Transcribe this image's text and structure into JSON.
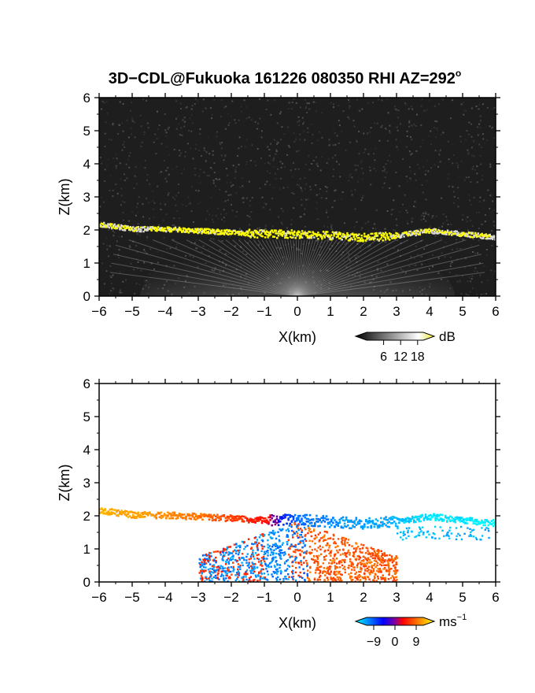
{
  "figure": {
    "title_main": "3D−CDL@Fukuoka 161226 080350 RHI AZ=292",
    "title_sup": "o"
  },
  "chart_data": [
    {
      "type": "heatmap",
      "panel": "top",
      "quantity": "reflectivity",
      "xlabel": "X(km)",
      "ylabel": "Z(km)",
      "xlim": [
        -6,
        6
      ],
      "ylim": [
        0,
        6
      ],
      "xticks": [
        "−6",
        "−5",
        "−4",
        "−3",
        "−2",
        "−1",
        "0",
        "1",
        "2",
        "3",
        "4",
        "5",
        "6"
      ],
      "yticks": [
        "0",
        "1",
        "2",
        "3",
        "4",
        "5",
        "6"
      ],
      "grid": false,
      "colorbar": {
        "unit": "dB",
        "ticks": [
          "6",
          "12",
          "18"
        ],
        "tick_values": [
          6,
          12,
          18
        ],
        "range": [
          0,
          20
        ],
        "colors": [
          "#000000",
          "#ffffff",
          "#ffff00"
        ]
      },
      "background": "#1e1e1e",
      "layers": [
        {
          "name": "aerosol layer",
          "x": [
            -6,
            -5,
            -4,
            -3,
            -2,
            -1,
            0,
            1,
            2,
            3,
            4,
            5,
            6
          ],
          "z": [
            2.2,
            2.05,
            2.05,
            2.0,
            1.95,
            1.9,
            1.9,
            1.85,
            1.8,
            1.85,
            2.0,
            1.9,
            1.8
          ],
          "color": "#ffff00"
        }
      ],
      "near_field_fan": {
        "center_x": 0,
        "top_z": 1.7,
        "color": "#cfcfcf"
      }
    },
    {
      "type": "heatmap",
      "panel": "bottom",
      "quantity": "doppler velocity",
      "xlabel": "X(km)",
      "ylabel": "Z(km)",
      "xlim": [
        -6,
        6
      ],
      "ylim": [
        0,
        6
      ],
      "xticks": [
        "−6",
        "−5",
        "−4",
        "−3",
        "−2",
        "−1",
        "0",
        "1",
        "2",
        "3",
        "4",
        "5",
        "6"
      ],
      "yticks": [
        "0",
        "1",
        "2",
        "3",
        "4",
        "5",
        "6"
      ],
      "grid": false,
      "colorbar": {
        "unit": "ms",
        "unit_sup": "−1",
        "ticks": [
          "−9",
          "0",
          "9"
        ],
        "tick_values": [
          -9,
          0,
          9
        ],
        "range": [
          -12,
          12
        ],
        "colors": [
          "#00ffff",
          "#0000ff",
          "#ff0000",
          "#ffff00"
        ]
      },
      "velocity_profile": {
        "x": [
          -6,
          -5,
          -4,
          -3,
          -2,
          -1,
          0,
          1,
          2,
          3,
          4,
          5,
          6
        ],
        "z": [
          2.2,
          2.05,
          2.05,
          2.0,
          1.95,
          1.9,
          1.9,
          1.85,
          1.8,
          1.85,
          2.0,
          1.9,
          1.8
        ],
        "velocity": [
          9,
          8,
          7,
          6,
          4,
          2,
          -6,
          -7,
          -8,
          -9,
          -11,
          -11,
          -12
        ]
      }
    }
  ]
}
